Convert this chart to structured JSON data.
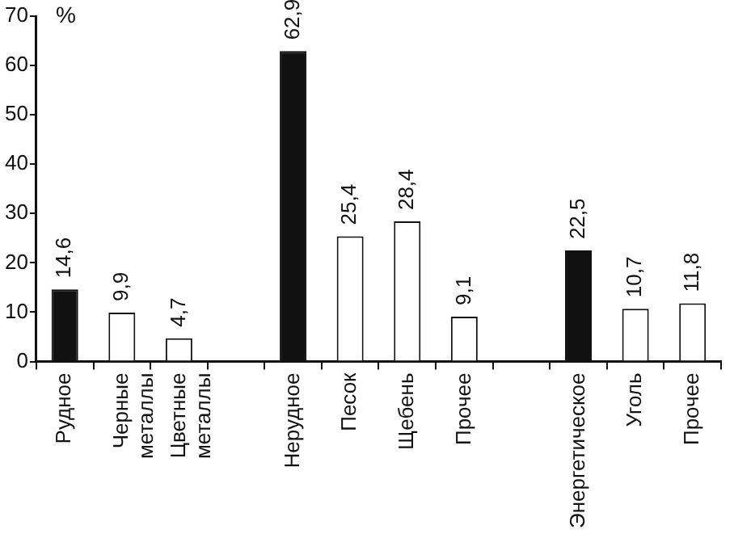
{
  "chart_data": {
    "type": "bar",
    "ylabel": "%",
    "categories": [
      "Рудное",
      "Черные металлы",
      "Цветные металлы",
      null,
      "Нерудное",
      "Песок",
      "Щебень",
      "Прочее",
      null,
      "Энергетическое",
      "Уголь",
      "Прочее"
    ],
    "values": [
      14.6,
      9.9,
      4.7,
      null,
      62.9,
      25.4,
      28.4,
      9.1,
      null,
      22.5,
      10.7,
      11.8
    ],
    "colors": [
      "#111111",
      "#ffffff",
      "#ffffff",
      null,
      "#111111",
      "#ffffff",
      "#ffffff",
      "#ffffff",
      null,
      "#111111",
      "#ffffff",
      "#ffffff"
    ],
    "ylim": [
      0,
      70
    ],
    "yticks": [
      0,
      10,
      20,
      30,
      40,
      50,
      60,
      70
    ],
    "value_labels": [
      "14,6",
      "9,9",
      "4,7",
      null,
      "62,9",
      "25,4",
      "28,4",
      "9,1",
      null,
      "22,5",
      "10,7",
      "11,8"
    ],
    "grid": false,
    "legend": false
  }
}
